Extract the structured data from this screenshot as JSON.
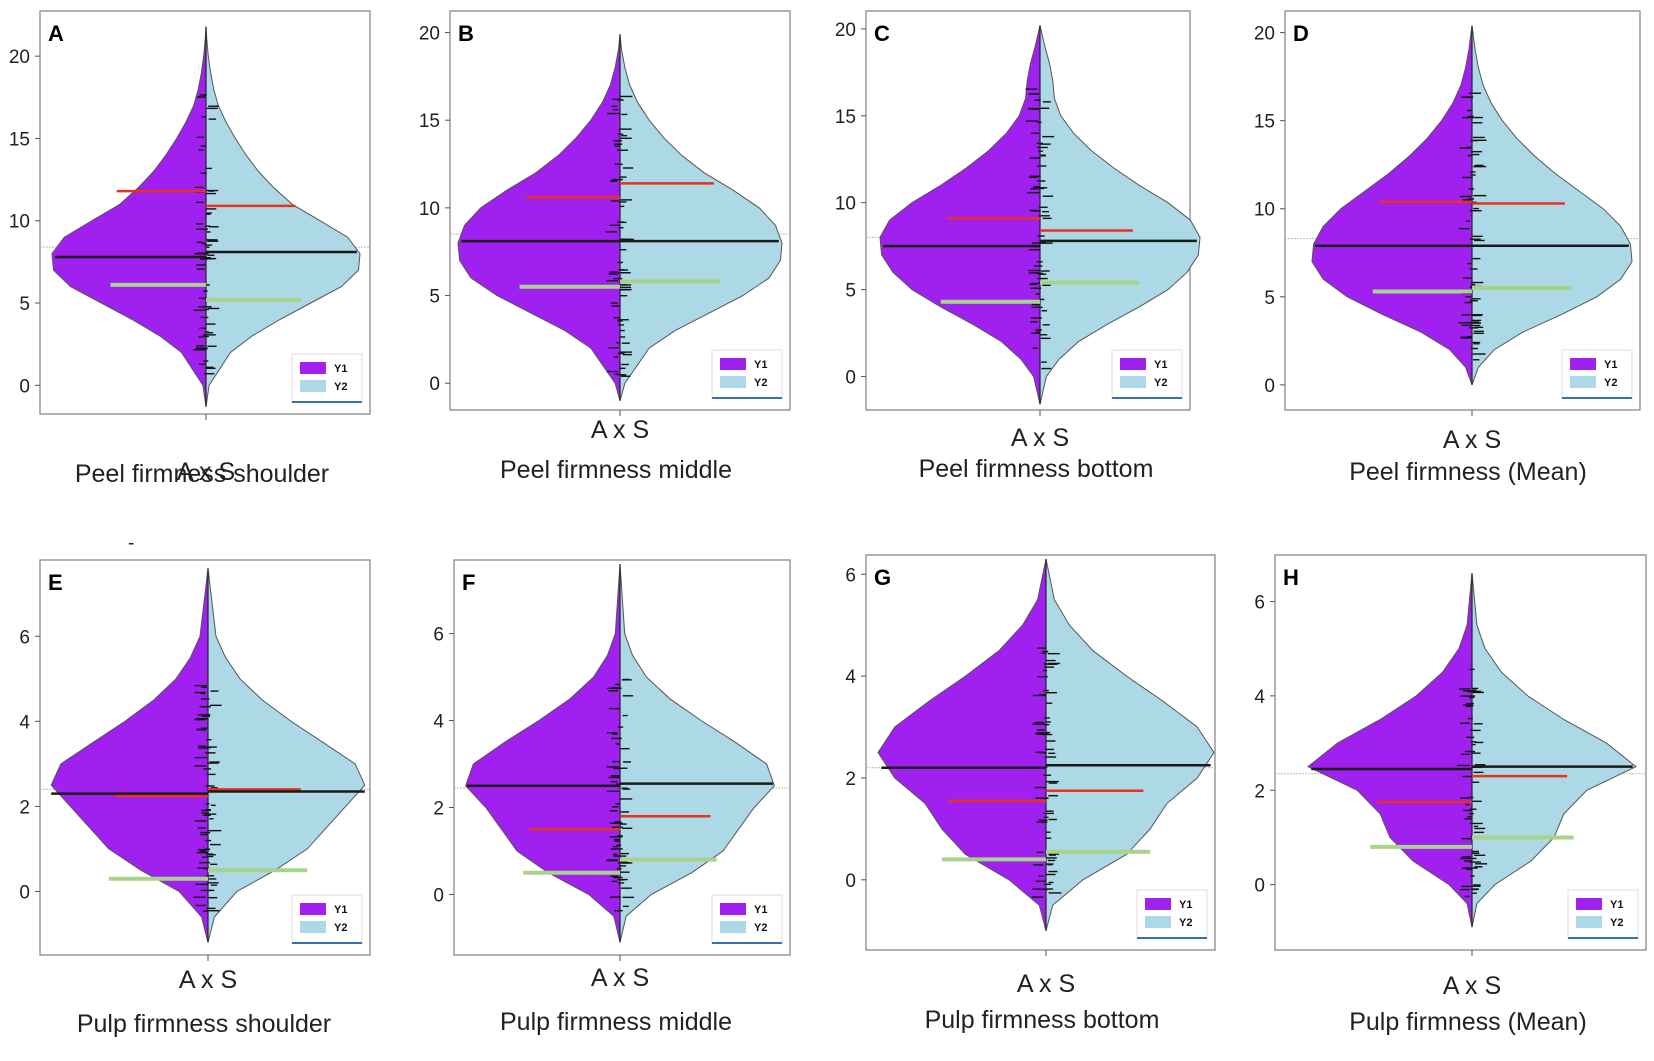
{
  "figure": {
    "series": [
      {
        "name": "Y1",
        "color": "#a020f0"
      },
      {
        "name": "Y2",
        "color": "#add8e6"
      }
    ],
    "line_colors": {
      "mean": "#1a1a1a",
      "upper": "#e8321e",
      "lower": "#a8d38a",
      "grand": "#bbbbbb"
    },
    "stray_mark": "-"
  },
  "chart_data": [
    {
      "type": "violin",
      "letter": "A",
      "xcat": "A x S",
      "title": "Peel firmness shoulder",
      "ticks": [
        0,
        5,
        10,
        15,
        20
      ],
      "ylim": [
        -1.5,
        22.5
      ],
      "range": [
        -1.3,
        21.8
      ],
      "grand": 8.4,
      "shape": [
        [
          -1.3,
          0.0
        ],
        [
          0,
          0.02
        ],
        [
          2,
          0.16
        ],
        [
          3,
          0.3
        ],
        [
          4,
          0.48
        ],
        [
          5,
          0.68
        ],
        [
          6,
          0.88
        ],
        [
          7,
          0.99
        ],
        [
          8,
          1.0
        ],
        [
          9,
          0.92
        ],
        [
          10,
          0.74
        ],
        [
          11,
          0.56
        ],
        [
          12,
          0.44
        ],
        [
          13,
          0.34
        ],
        [
          14,
          0.26
        ],
        [
          15,
          0.19
        ],
        [
          16,
          0.13
        ],
        [
          17,
          0.08
        ],
        [
          18,
          0.05
        ],
        [
          19,
          0.03
        ],
        [
          20,
          0.015
        ],
        [
          21,
          0.005
        ],
        [
          21.8,
          0.0
        ]
      ],
      "lines": {
        "Y1": {
          "mean": 7.8,
          "upper": 11.8,
          "lower": 6.1
        },
        "Y2": {
          "mean": 8.1,
          "upper": 10.9,
          "lower": 5.2
        }
      }
    },
    {
      "type": "violin",
      "letter": "B",
      "xcat": "A x S",
      "title": "Peel firmness middle",
      "ticks": [
        0,
        5,
        10,
        15,
        20
      ],
      "ylim": [
        -1.3,
        21.0
      ],
      "range": [
        -1.0,
        19.9
      ],
      "grand": 8.5,
      "shape": [
        [
          -1.0,
          0.0
        ],
        [
          0,
          0.03
        ],
        [
          2,
          0.18
        ],
        [
          3,
          0.34
        ],
        [
          4,
          0.55
        ],
        [
          5,
          0.76
        ],
        [
          6,
          0.92
        ],
        [
          7,
          0.99
        ],
        [
          8,
          1.0
        ],
        [
          9,
          0.96
        ],
        [
          10,
          0.86
        ],
        [
          11,
          0.7
        ],
        [
          12,
          0.52
        ],
        [
          13,
          0.38
        ],
        [
          14,
          0.27
        ],
        [
          15,
          0.18
        ],
        [
          16,
          0.11
        ],
        [
          17,
          0.06
        ],
        [
          18,
          0.03
        ],
        [
          19,
          0.01
        ],
        [
          19.9,
          0.0
        ]
      ],
      "lines": {
        "Y1": {
          "mean": 8.1,
          "upper": 10.6,
          "lower": 5.5
        },
        "Y2": {
          "mean": 8.1,
          "upper": 11.4,
          "lower": 5.8
        }
      }
    },
    {
      "type": "violin",
      "letter": "C",
      "xcat": "A x S",
      "title": "Peel firmness bottom",
      "ticks": [
        0,
        5,
        10,
        15,
        20
      ],
      "ylim": [
        -1.7,
        20.8
      ],
      "range": [
        -1.6,
        20.2
      ],
      "grand": 8.0,
      "shape": [
        [
          -1.6,
          0.0
        ],
        [
          0,
          0.04
        ],
        [
          1,
          0.12
        ],
        [
          2,
          0.24
        ],
        [
          3,
          0.42
        ],
        [
          4,
          0.62
        ],
        [
          5,
          0.8
        ],
        [
          6,
          0.92
        ],
        [
          7,
          0.99
        ],
        [
          8,
          1.0
        ],
        [
          9,
          0.94
        ],
        [
          10,
          0.8
        ],
        [
          11,
          0.62
        ],
        [
          12,
          0.46
        ],
        [
          13,
          0.32
        ],
        [
          14,
          0.21
        ],
        [
          15,
          0.13
        ],
        [
          16,
          0.09
        ],
        [
          17,
          0.08
        ],
        [
          18,
          0.06
        ],
        [
          19,
          0.03
        ],
        [
          20.2,
          0.0
        ]
      ],
      "lines": {
        "Y1": {
          "mean": 7.5,
          "upper": 9.1,
          "lower": 4.3
        },
        "Y2": {
          "mean": 7.8,
          "upper": 8.4,
          "lower": 5.4
        }
      }
    },
    {
      "type": "violin",
      "letter": "D",
      "xcat": "A x S",
      "title": "Peel firmness (Mean)",
      "ticks": [
        0,
        5,
        10,
        15,
        20
      ],
      "ylim": [
        -1.2,
        21.0
      ],
      "range": [
        0,
        20.4
      ],
      "grand": 8.3,
      "shape": [
        [
          0,
          0.0
        ],
        [
          1,
          0.04
        ],
        [
          2,
          0.14
        ],
        [
          3,
          0.32
        ],
        [
          4,
          0.56
        ],
        [
          5,
          0.78
        ],
        [
          6,
          0.93
        ],
        [
          7,
          1.0
        ],
        [
          8,
          0.99
        ],
        [
          9,
          0.93
        ],
        [
          10,
          0.82
        ],
        [
          11,
          0.67
        ],
        [
          12,
          0.52
        ],
        [
          13,
          0.39
        ],
        [
          14,
          0.28
        ],
        [
          15,
          0.19
        ],
        [
          16,
          0.12
        ],
        [
          17,
          0.07
        ],
        [
          18,
          0.04
        ],
        [
          19,
          0.02
        ],
        [
          20.4,
          0.0
        ]
      ],
      "lines": {
        "Y1": {
          "mean": 7.9,
          "upper": 10.4,
          "lower": 5.3
        },
        "Y2": {
          "mean": 7.9,
          "upper": 10.3,
          "lower": 5.5
        }
      }
    },
    {
      "type": "violin",
      "letter": "E",
      "xcat": "A x S",
      "title": "Pulp firmness shoulder",
      "ticks": [
        0,
        2,
        4,
        6
      ],
      "ylim": [
        -1.4,
        7.7
      ],
      "range": [
        -1.2,
        7.6
      ],
      "grand": 2.4,
      "shape": [
        [
          -1.2,
          0.0
        ],
        [
          -0.6,
          0.04
        ],
        [
          0,
          0.18
        ],
        [
          0.5,
          0.42
        ],
        [
          1,
          0.62
        ],
        [
          1.5,
          0.74
        ],
        [
          2,
          0.86
        ],
        [
          2.5,
          0.98
        ],
        [
          3,
          0.92
        ],
        [
          3.5,
          0.72
        ],
        [
          4,
          0.52
        ],
        [
          4.5,
          0.34
        ],
        [
          5,
          0.2
        ],
        [
          5.5,
          0.11
        ],
        [
          6,
          0.05
        ],
        [
          7.6,
          0.0
        ]
      ],
      "lines": {
        "Y1": {
          "mean": 2.3,
          "upper": 2.25,
          "lower": 0.3
        },
        "Y2": {
          "mean": 2.35,
          "upper": 2.4,
          "lower": 0.5
        }
      }
    },
    {
      "type": "violin",
      "letter": "F",
      "xcat": "A x S",
      "title": "Pulp firmness middle",
      "ticks": [
        0,
        2,
        4,
        6
      ],
      "ylim": [
        -1.3,
        7.6
      ],
      "range": [
        -1.1,
        7.6
      ],
      "grand": 2.45,
      "shape": [
        [
          -1.1,
          0.0
        ],
        [
          -0.5,
          0.04
        ],
        [
          0,
          0.2
        ],
        [
          0.5,
          0.46
        ],
        [
          1,
          0.66
        ],
        [
          1.5,
          0.76
        ],
        [
          2,
          0.86
        ],
        [
          2.5,
          0.99
        ],
        [
          3,
          0.94
        ],
        [
          3.5,
          0.74
        ],
        [
          4,
          0.52
        ],
        [
          4.5,
          0.32
        ],
        [
          5,
          0.17
        ],
        [
          5.5,
          0.08
        ],
        [
          6,
          0.03
        ],
        [
          7.6,
          0.0
        ]
      ],
      "lines": {
        "Y1": {
          "mean": 2.5,
          "upper": 1.5,
          "lower": 0.5
        },
        "Y2": {
          "mean": 2.55,
          "upper": 1.8,
          "lower": 0.8
        }
      }
    },
    {
      "type": "violin",
      "letter": "G",
      "xcat": "A x S",
      "title": "Pulp firmness bottom",
      "ticks": [
        0,
        2,
        4,
        6
      ],
      "ylim": [
        -1.3,
        6.3
      ],
      "range": [
        -1.0,
        6.3
      ],
      "grand": 2.2,
      "shape": [
        [
          -1.0,
          0.0
        ],
        [
          -0.5,
          0.04
        ],
        [
          0,
          0.22
        ],
        [
          0.5,
          0.48
        ],
        [
          1,
          0.62
        ],
        [
          1.5,
          0.72
        ],
        [
          2,
          0.9
        ],
        [
          2.5,
          1.0
        ],
        [
          3,
          0.9
        ],
        [
          3.5,
          0.7
        ],
        [
          4,
          0.48
        ],
        [
          4.5,
          0.28
        ],
        [
          5,
          0.14
        ],
        [
          5.5,
          0.05
        ],
        [
          6.3,
          0.0
        ]
      ],
      "lines": {
        "Y1": {
          "mean": 2.2,
          "upper": 1.55,
          "lower": 0.4
        },
        "Y2": {
          "mean": 2.25,
          "upper": 1.75,
          "lower": 0.55
        }
      }
    },
    {
      "type": "violin",
      "letter": "H",
      "xcat": "A x S",
      "title": "Pulp firmness (Mean)",
      "ticks": [
        0,
        2,
        4,
        6
      ],
      "ylim": [
        -1.3,
        6.9
      ],
      "range": [
        -0.9,
        6.6
      ],
      "grand": 2.35,
      "shape": [
        [
          -0.9,
          0.0
        ],
        [
          -0.4,
          0.03
        ],
        [
          0,
          0.14
        ],
        [
          0.5,
          0.36
        ],
        [
          1,
          0.5
        ],
        [
          1.5,
          0.56
        ],
        [
          2,
          0.7
        ],
        [
          2.5,
          1.0
        ],
        [
          3,
          0.82
        ],
        [
          3.5,
          0.56
        ],
        [
          4,
          0.34
        ],
        [
          4.5,
          0.18
        ],
        [
          5,
          0.08
        ],
        [
          5.5,
          0.03
        ],
        [
          6.6,
          0.0
        ]
      ],
      "lines": {
        "Y1": {
          "mean": 2.45,
          "upper": 1.75,
          "lower": 0.8
        },
        "Y2": {
          "mean": 2.5,
          "upper": 2.3,
          "lower": 1.0
        }
      }
    }
  ]
}
